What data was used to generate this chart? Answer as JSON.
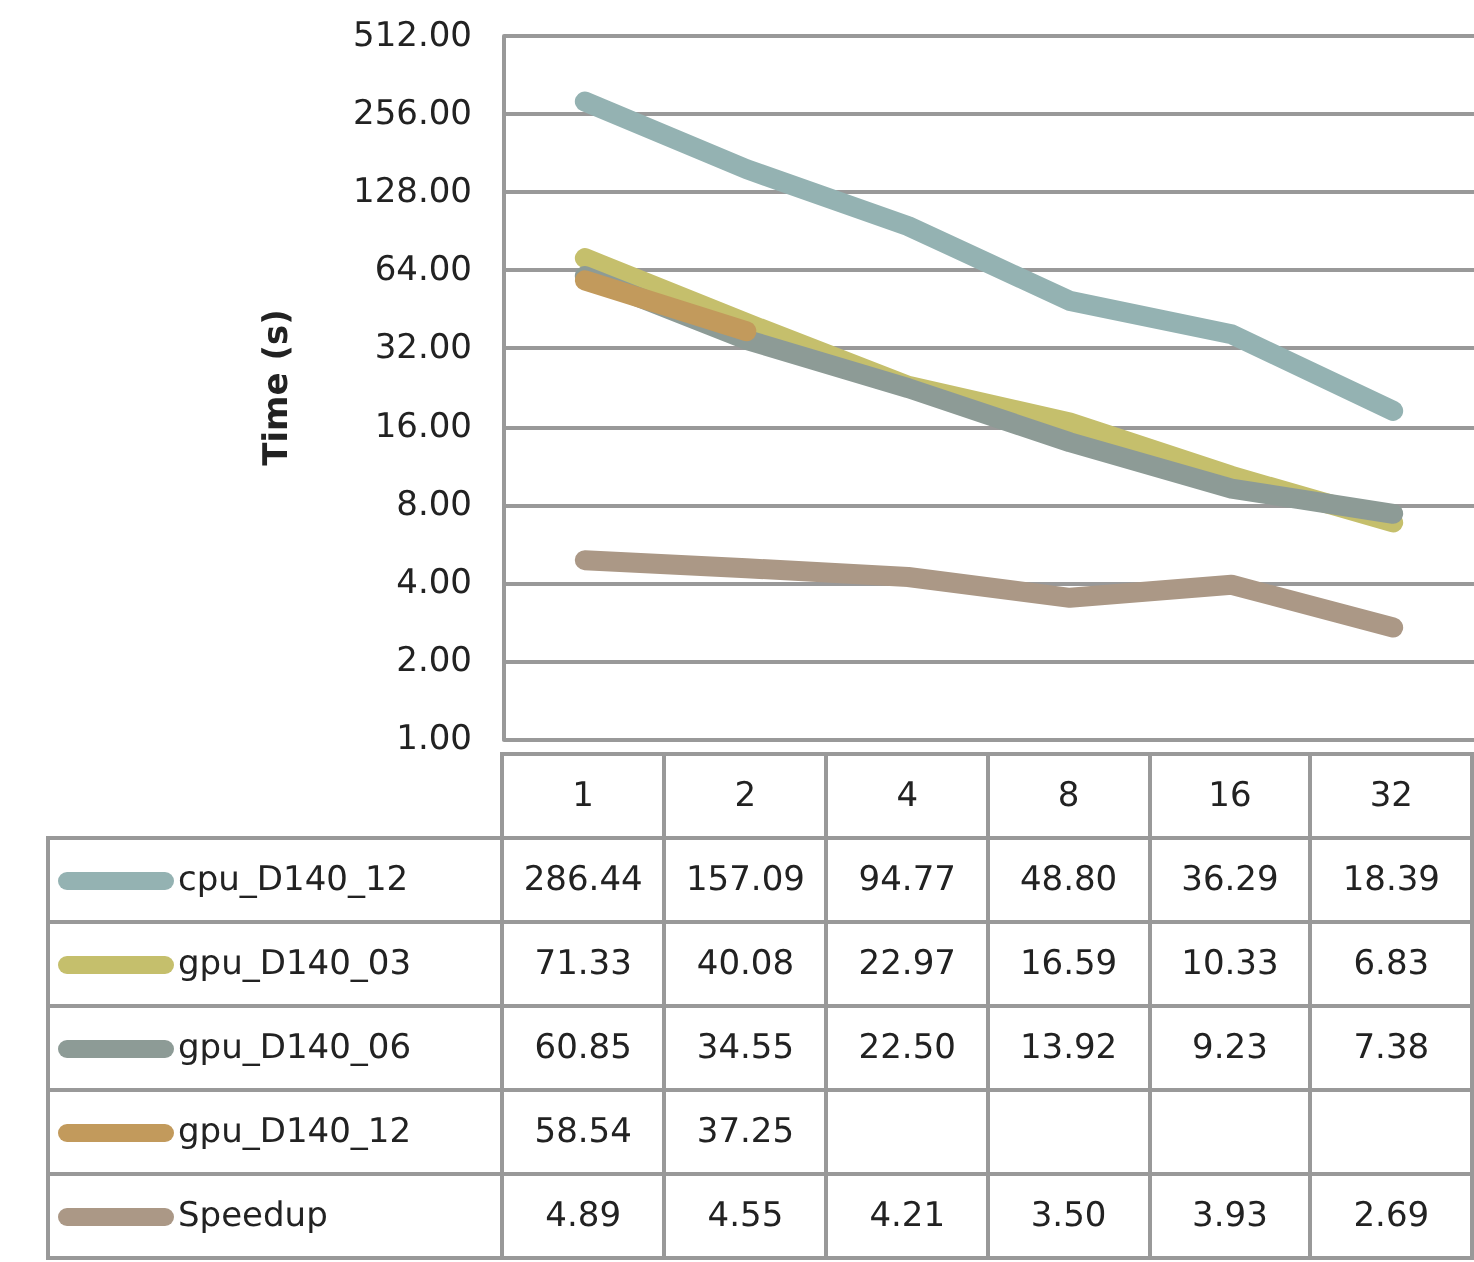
{
  "chart_data": {
    "type": "line",
    "ylabel": "Time (s)",
    "categories": [
      "1",
      "2",
      "4",
      "8",
      "16",
      "32"
    ],
    "series": [
      {
        "name": "cpu_D140_12",
        "color": "#94b2b2",
        "values": [
          286.44,
          157.09,
          94.77,
          48.8,
          36.29,
          18.39
        ],
        "value_labels": [
          "286.44",
          "157.09",
          "94.77",
          "48.80",
          "36.29",
          "18.39"
        ]
      },
      {
        "name": "gpu_D140_03",
        "color": "#c5bf6c",
        "values": [
          71.33,
          40.08,
          22.97,
          16.59,
          10.33,
          6.83
        ],
        "value_labels": [
          "71.33",
          "40.08",
          "22.97",
          "16.59",
          "10.33",
          "6.83"
        ]
      },
      {
        "name": "gpu_D140_06",
        "color": "#8d9b96",
        "values": [
          60.85,
          34.55,
          22.5,
          13.92,
          9.23,
          7.38
        ],
        "value_labels": [
          "60.85",
          "34.55",
          "22.50",
          "13.92",
          "9.23",
          "7.38"
        ]
      },
      {
        "name": "gpu_D140_12",
        "color": "#c29a5c",
        "values": [
          58.54,
          37.25,
          null,
          null,
          null,
          null
        ],
        "value_labels": [
          "58.54",
          "37.25",
          null,
          null,
          null,
          null
        ]
      },
      {
        "name": "Speedup",
        "color": "#ab9886",
        "values": [
          4.89,
          4.55,
          4.21,
          3.5,
          3.93,
          2.69
        ],
        "value_labels": [
          "4.89",
          "4.55",
          "4.21",
          "3.50",
          "3.93",
          "2.69"
        ]
      }
    ],
    "log": "y",
    "ylim": [
      1,
      512
    ],
    "yticks": [
      {
        "value": 1,
        "label": "1.00"
      },
      {
        "value": 2,
        "label": "2.00"
      },
      {
        "value": 4,
        "label": "4.00"
      },
      {
        "value": 8,
        "label": "8.00"
      },
      {
        "value": 16,
        "label": "16.00"
      },
      {
        "value": 32,
        "label": "32.00"
      },
      {
        "value": 64,
        "label": "64.00"
      },
      {
        "value": 128,
        "label": "128.00"
      },
      {
        "value": 256,
        "label": "256.00"
      },
      {
        "value": 512,
        "label": "512.00"
      }
    ],
    "grid": "y",
    "legend": "bottom",
    "marker": "none"
  }
}
